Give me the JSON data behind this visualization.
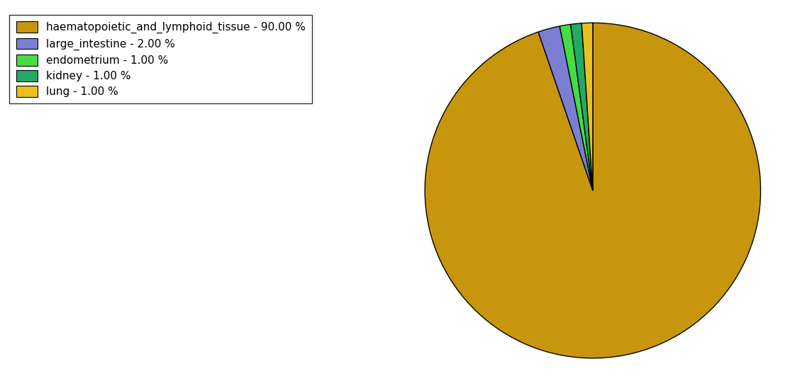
{
  "labels": [
    "haematopoietic_and_lymphoid_tissue - 90.00 %",
    "large_intestine - 2.00 %",
    "endometrium - 1.00 %",
    "kidney - 1.00 %",
    "lung - 1.00 %"
  ],
  "sizes": [
    90.0,
    2.0,
    1.0,
    1.0,
    1.0
  ],
  "colors": [
    "#C8960C",
    "#7B7FD4",
    "#44DD44",
    "#22AA66",
    "#E8C020"
  ],
  "background_color": "#ffffff",
  "startangle": 90,
  "figsize": [
    11.45,
    5.38
  ],
  "dpi": 100
}
